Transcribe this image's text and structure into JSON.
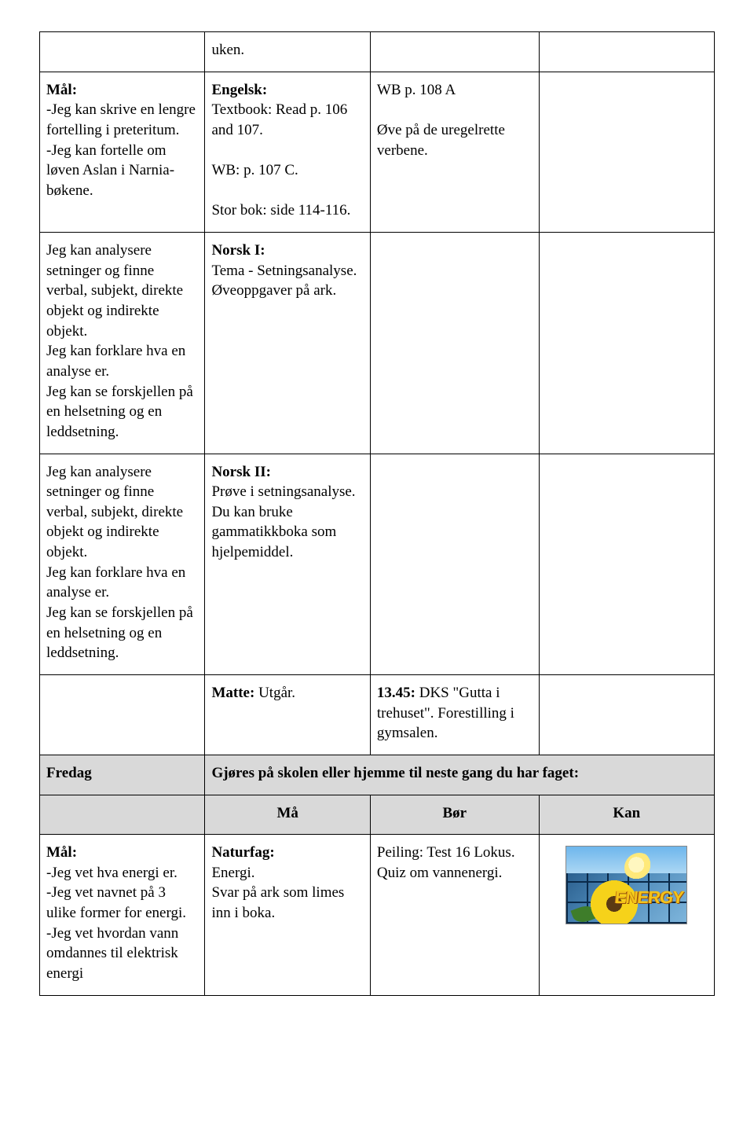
{
  "rows": [
    {
      "c1": "",
      "c2": "uken.",
      "c3": "",
      "c4": ""
    },
    {
      "c1": "<span class=\"bold\">Mål:</span><br>-Jeg kan skrive en lengre fortelling i preteritum.<br>-Jeg kan fortelle om løven Aslan i Narnia-bøkene.",
      "c2": "<span class=\"bold\">Engelsk:</span><br>Textbook: Read p. 106 and 107.<br><br>WB: p. 107 C.<br><br>Stor bok: side 114-116.",
      "c3": "WB p. 108 A<br><br>Øve på de uregelrette verbene.",
      "c4": ""
    },
    {
      "c1": "Jeg kan analysere setninger og finne verbal, subjekt, direkte objekt og indirekte objekt.<br>Jeg kan forklare hva en analyse er.<br>Jeg kan se forskjellen på en helsetning og en leddsetning.",
      "c2": "<span class=\"bold\">Norsk I:</span><br>Tema - Setningsanalyse.<br>Øveoppgaver på ark.",
      "c3": "",
      "c4": ""
    },
    {
      "c1": "Jeg kan analysere setninger og finne verbal, subjekt, direkte objekt og indirekte objekt.<br>Jeg kan forklare hva en analyse er.<br>Jeg kan se forskjellen på en helsetning og en leddsetning.",
      "c2": "<span class=\"bold\">Norsk II:</span><br>Prøve i setningsanalyse.<br>Du kan bruke gammatikkboka  som hjelpemiddel.",
      "c3": "",
      "c4": ""
    },
    {
      "c1": "",
      "c2": "<span class=\"bold\">Matte:</span> Utgår.",
      "c3": "<span class=\"bold\">13.45:</span> DKS \"Gutta i trehuset\". Forestilling i gymsalen.",
      "c4": ""
    }
  ],
  "dayHeader": {
    "day": "Fredag",
    "right": "Gjøres på skolen eller hjemme til neste gang du har faget:"
  },
  "greyHeaders": {
    "h1": "Må",
    "h2": "Bør",
    "h3": "Kan"
  },
  "last": {
    "c1": "<span class=\"bold\">Mål:</span><br>-Jeg vet hva energi er.<br>-Jeg vet navnet på 3 ulike former for energi.<br>-Jeg vet hvordan vann omdannes til  elektrisk energi",
    "c2": "<span class=\"bold\">Naturfag:</span><br>Energi.<br>Svar på ark som limes inn i boka.",
    "c3": "Peiling: Test 16 Lokus. Quiz om vannenergi.",
    "imgText": "ENERGY"
  }
}
